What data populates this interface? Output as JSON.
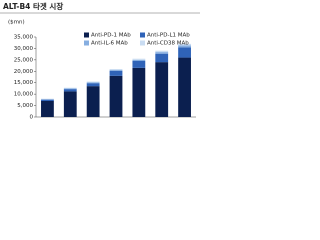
{
  "chart_data": {
    "type": "bar",
    "stacked": true,
    "title": "ALT-B4 타겟 시장",
    "y_label": "($mn)",
    "categories": [
      null,
      null,
      null,
      null,
      null,
      null,
      null
    ],
    "series": [
      {
        "name": "Anti-PD-1 MAb",
        "color": "#0b1f4f",
        "values": [
          7000,
          11200,
          13500,
          18000,
          21500,
          24000,
          26000
        ]
      },
      {
        "name": "Anti-PD-L1 MAb",
        "color": "#2f63b8",
        "values": [
          600,
          1000,
          1300,
          2200,
          3000,
          3700,
          4500
        ]
      },
      {
        "name": "Anti-IL-6 MAb",
        "color": "#86aee0",
        "values": [
          200,
          300,
          400,
          400,
          500,
          700,
          800
        ]
      },
      {
        "name": "Anti-CD38 MAb",
        "color": "#c9dcf2",
        "values": [
          200,
          300,
          300,
          400,
          500,
          600,
          700
        ]
      }
    ],
    "ylim": [
      0,
      35000
    ],
    "yticks": [
      0,
      {
        "value": 5000,
        "label": "5,000"
      },
      {
        "value": 10000,
        "label": "10,000"
      },
      {
        "value": 15000,
        "label": "15,000"
      },
      {
        "value": 20000,
        "label": "20,000"
      },
      {
        "value": 25000,
        "label": "25,000"
      },
      {
        "value": 30000,
        "label": "30,000"
      },
      {
        "value": 35000,
        "label": "35,000"
      }
    ],
    "legend": "top-center"
  }
}
